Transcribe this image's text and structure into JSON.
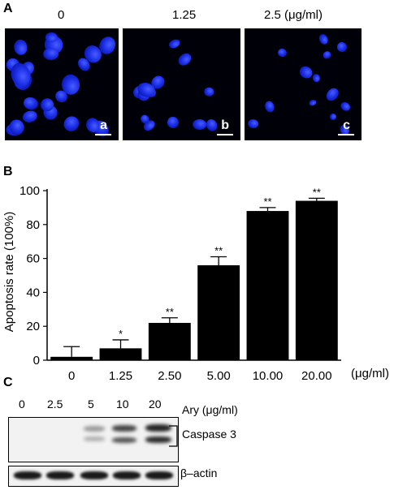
{
  "panel_a": {
    "letter": "A",
    "concentrations": [
      "0",
      "1.25",
      "2.5 (μg/ml)"
    ],
    "sublabels": [
      "a",
      "b",
      "c"
    ],
    "nucleus_color": "#1a2ee6"
  },
  "panel_b": {
    "letter": "B",
    "x_unit": "(μg/ml)"
  },
  "chart_data": {
    "type": "bar",
    "title": "",
    "xlabel": "",
    "ylabel": "Apoptosis rate (100%)",
    "categories": [
      "0",
      "1.25",
      "2.50",
      "5.00",
      "10.00",
      "20.00"
    ],
    "values": [
      2,
      7,
      22,
      56,
      88,
      94
    ],
    "errors": [
      6,
      5,
      3,
      5,
      2,
      1.5
    ],
    "significance": [
      "",
      "*",
      "**",
      "**",
      "**",
      "**"
    ],
    "ylim": [
      0,
      100
    ],
    "yticks": [
      0,
      20,
      40,
      60,
      80,
      100
    ],
    "bar_color": "#000000",
    "grid": false
  },
  "panel_c": {
    "letter": "C",
    "lane_labels": [
      "0",
      "2.5",
      "5",
      "10",
      "20"
    ],
    "unit": "Ary (μg/ml)",
    "protein_top": "Caspase 3",
    "protein_bottom": "β–actin"
  }
}
